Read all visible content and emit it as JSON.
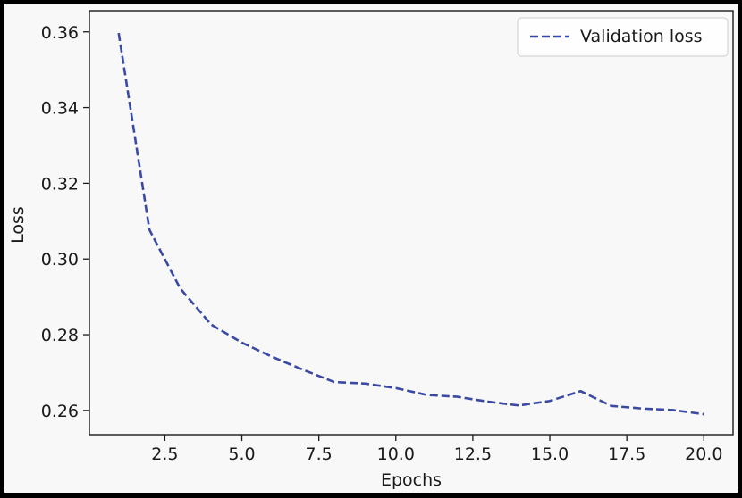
{
  "chart_data": {
    "type": "line",
    "xlabel": "Epochs",
    "ylabel": "Loss",
    "xlim": [
      0.05,
      20.95
    ],
    "ylim": [
      0.2536,
      0.3656
    ],
    "x_ticks": [
      "2.5",
      "5.0",
      "7.5",
      "10.0",
      "12.5",
      "15.0",
      "17.5",
      "20.0"
    ],
    "x_tick_values": [
      2.5,
      5.0,
      7.5,
      10.0,
      12.5,
      15.0,
      17.5,
      20.0
    ],
    "y_ticks": [
      "0.26",
      "0.28",
      "0.30",
      "0.32",
      "0.34",
      "0.36"
    ],
    "y_tick_values": [
      0.26,
      0.28,
      0.3,
      0.32,
      0.34,
      0.36
    ],
    "grid": false,
    "legend_position": "top-right",
    "series": [
      {
        "name": "Validation loss",
        "color": "#3a4aa3",
        "line_style": "dashed",
        "x": [
          1,
          2,
          3,
          4,
          5,
          6,
          7,
          8,
          9,
          10,
          11,
          12,
          13,
          14,
          15,
          16,
          17,
          18,
          19,
          20
        ],
        "y": [
          0.3597,
          0.3077,
          0.2922,
          0.2827,
          0.2779,
          0.2741,
          0.2707,
          0.2675,
          0.2671,
          0.2659,
          0.2641,
          0.2636,
          0.2623,
          0.2613,
          0.2625,
          0.2651,
          0.2612,
          0.2605,
          0.2601,
          0.259
        ]
      }
    ]
  }
}
